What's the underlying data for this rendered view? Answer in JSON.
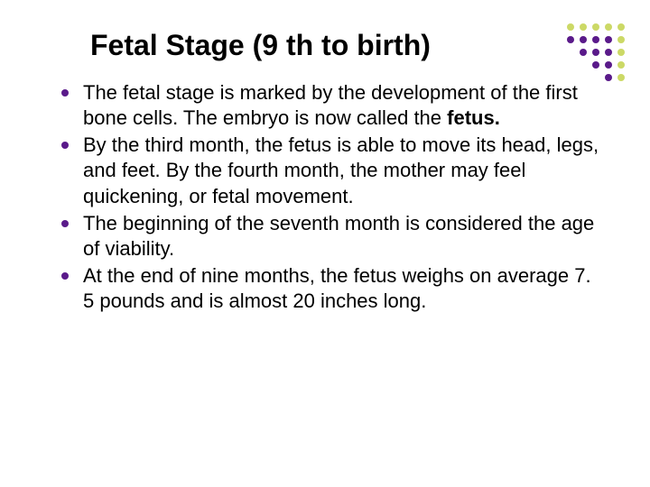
{
  "title": "Fetal Stage (9 th to birth)",
  "title_color": "#000000",
  "title_fontsize": 32,
  "body_fontsize": 22,
  "bullet_color": "#5a1a8a",
  "text_color": "#000000",
  "background_color": "#ffffff",
  "bullets": [
    {
      "pre": "The fetal stage is marked by the development of the first bone cells.  The embryo is now called the ",
      "bold": "fetus.",
      "post": ""
    },
    {
      "pre": "By the third month, the fetus is able to move its head, legs, and feet.  By the fourth month, the mother may feel quickening, or fetal movement.",
      "bold": "",
      "post": ""
    },
    {
      "pre": "The beginning of the seventh month is considered the age of viability.",
      "bold": "",
      "post": ""
    },
    {
      "pre": "At the end of nine months, the fetus weighs on average 7. 5 pounds and is almost 20 inches long.",
      "bold": "",
      "post": ""
    }
  ],
  "corner_dots": {
    "grid": [
      [
        "#ccd966",
        "#ccd966",
        "#ccd966",
        "#ccd966",
        "#ccd966"
      ],
      [
        "#5a1a8a",
        "#5a1a8a",
        "#5a1a8a",
        "#5a1a8a",
        "#ccd966"
      ],
      [
        "",
        "#5a1a8a",
        "#5a1a8a",
        "#5a1a8a",
        "#ccd966"
      ],
      [
        "",
        "",
        "#5a1a8a",
        "#5a1a8a",
        "#ccd966"
      ],
      [
        "",
        "",
        "",
        "#5a1a8a",
        "#ccd966"
      ]
    ],
    "dot_size": 8,
    "gap": 4
  }
}
